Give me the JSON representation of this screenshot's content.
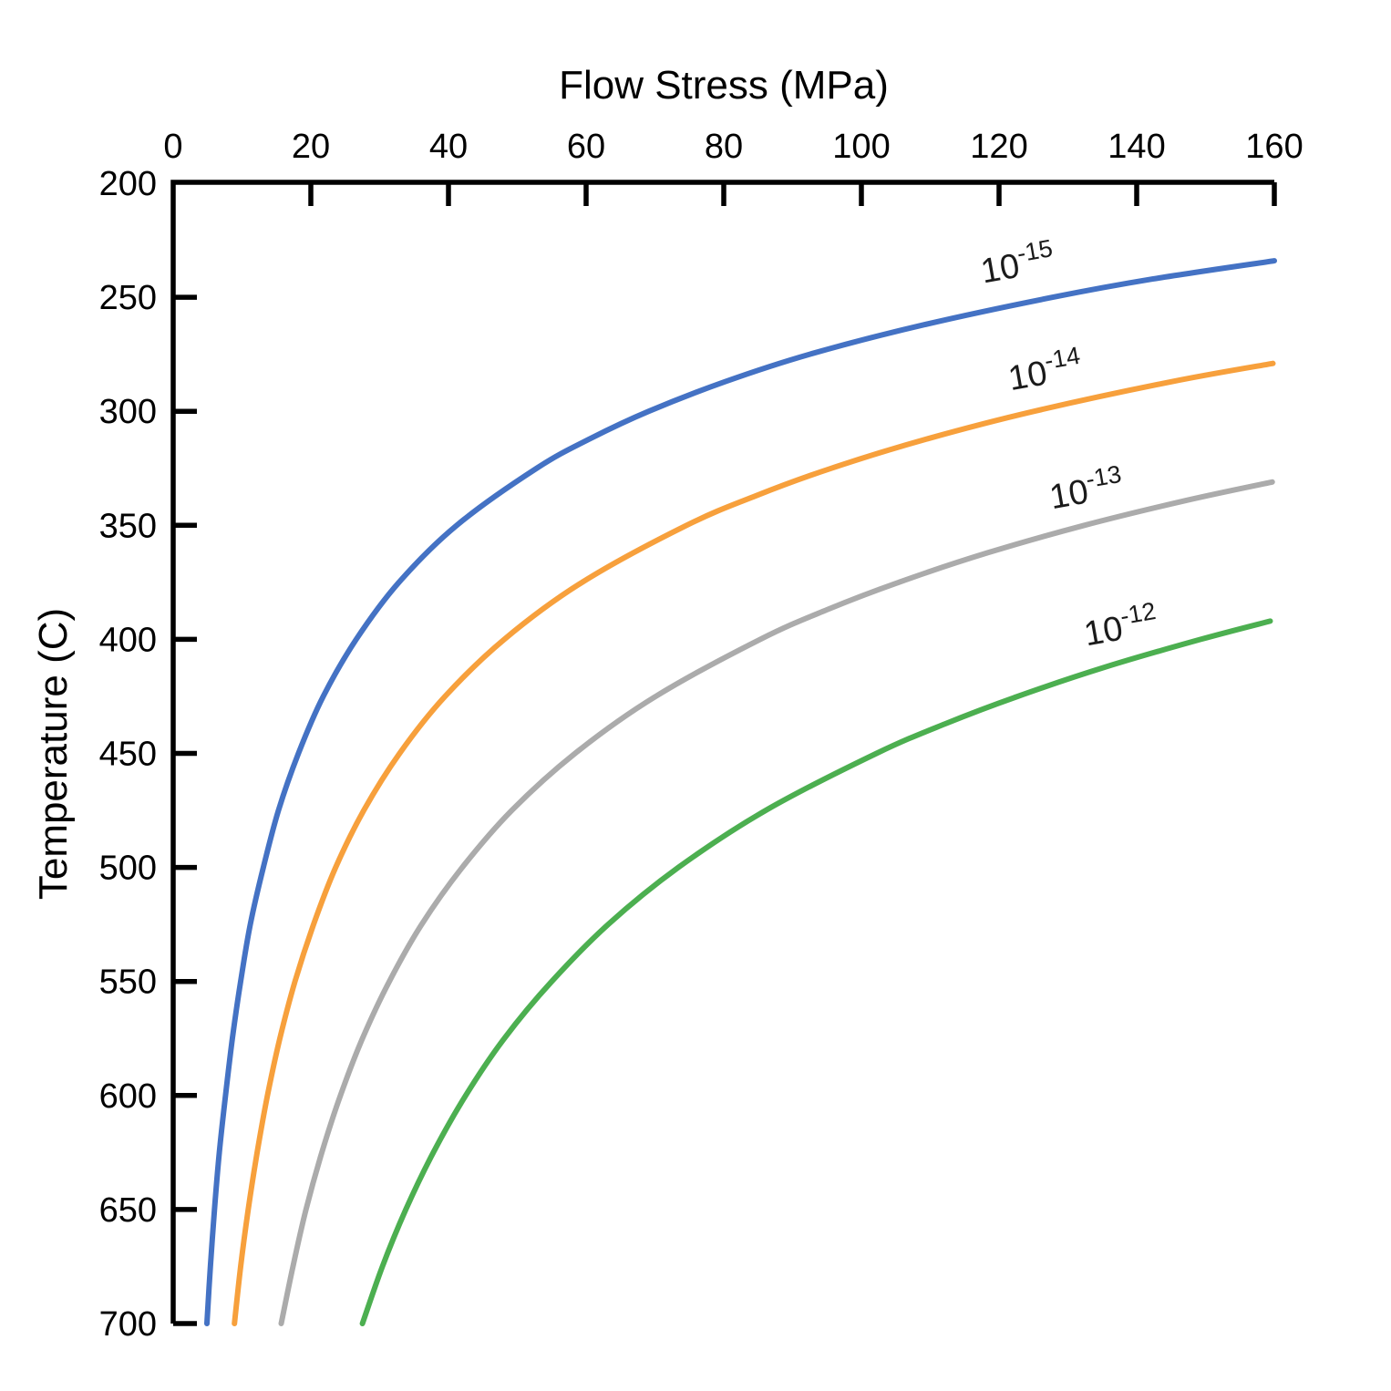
{
  "figure": {
    "background": "#FFFFFF",
    "axis_color": "#000000"
  },
  "chart_data": {
    "type": "line",
    "title": "",
    "xlabel": "Flow Stress (MPa)",
    "ylabel": "Temperature (C)",
    "x_axis_position": "top",
    "y_axis_inverted": true,
    "xlim": [
      0,
      160
    ],
    "ylim": [
      200,
      700
    ],
    "x_ticks": [
      0,
      20,
      40,
      60,
      80,
      100,
      120,
      140,
      160
    ],
    "y_ticks": [
      200,
      250,
      300,
      350,
      400,
      450,
      500,
      550,
      600,
      650,
      700
    ],
    "grid": false,
    "legend": "inline curve labels (strain rate, 1/s)",
    "series": [
      {
        "name": "strain-rate-1e-15",
        "label_base": "10",
        "label_exp": "-15",
        "color": "#4472C4",
        "label_at": {
          "stress": 123,
          "temp": 241,
          "rotation": -10
        },
        "points_stress_temp": [
          [
            160,
            234
          ],
          [
            142.3,
            242
          ],
          [
            127.8,
            250
          ],
          [
            109.2,
            262
          ],
          [
            92.5,
            275
          ],
          [
            80.2,
            287
          ],
          [
            69.1,
            300
          ],
          [
            60.6,
            312
          ],
          [
            52.8,
            325
          ],
          [
            41.2,
            350
          ],
          [
            32.8,
            375
          ],
          [
            26.6,
            400
          ],
          [
            21.8,
            425
          ],
          [
            18.2,
            450
          ],
          [
            15.3,
            475
          ],
          [
            13.1,
            500
          ],
          [
            11.2,
            525
          ],
          [
            9.8,
            550
          ],
          [
            8.6,
            575
          ],
          [
            7.6,
            600
          ],
          [
            6.7,
            625
          ],
          [
            6.0,
            650
          ],
          [
            5.4,
            675
          ],
          [
            4.9,
            700
          ]
        ]
      },
      {
        "name": "strain-rate-1e-14",
        "label_base": "10",
        "label_exp": "-14",
        "color": "#F7A03C",
        "label_at": {
          "stress": 127,
          "temp": 288,
          "rotation": -10
        },
        "points_stress_temp": [
          [
            159.8,
            279
          ],
          [
            145.1,
            287
          ],
          [
            125.1,
            300
          ],
          [
            109.7,
            312
          ],
          [
            95.6,
            325
          ],
          [
            84.7,
            337
          ],
          [
            74.6,
            350
          ],
          [
            59.4,
            375
          ],
          [
            48.1,
            400
          ],
          [
            39.5,
            425
          ],
          [
            32.9,
            450
          ],
          [
            27.7,
            475
          ],
          [
            23.6,
            500
          ],
          [
            20.4,
            525
          ],
          [
            17.7,
            550
          ],
          [
            15.5,
            575
          ],
          [
            13.7,
            600
          ],
          [
            12.2,
            625
          ],
          [
            10.9,
            650
          ],
          [
            9.8,
            675
          ],
          [
            8.9,
            700
          ]
        ]
      },
      {
        "name": "strain-rate-1e-13",
        "label_base": "10",
        "label_exp": "-13",
        "color": "#ABABAB",
        "label_at": {
          "stress": 133,
          "temp": 340,
          "rotation": -10
        },
        "points_stress_temp": [
          [
            159.7,
            331
          ],
          [
            147.3,
            339
          ],
          [
            132.4,
            350
          ],
          [
            118.4,
            362
          ],
          [
            105.4,
            375
          ],
          [
            95.0,
            387
          ],
          [
            85.3,
            400
          ],
          [
            70.1,
            425
          ],
          [
            58.4,
            450
          ],
          [
            49.2,
            475
          ],
          [
            42.0,
            500
          ],
          [
            36.1,
            525
          ],
          [
            31.4,
            550
          ],
          [
            27.5,
            575
          ],
          [
            24.3,
            600
          ],
          [
            21.6,
            625
          ],
          [
            19.3,
            650
          ],
          [
            17.4,
            675
          ],
          [
            15.7,
            700
          ]
        ]
      },
      {
        "name": "strain-rate-1e-12",
        "label_base": "10",
        "label_exp": "-12",
        "color": "#4CAF50",
        "label_at": {
          "stress": 138,
          "temp": 400,
          "rotation": -10
        },
        "points_stress_temp": [
          [
            159.4,
            392
          ],
          [
            149.3,
            400
          ],
          [
            135.6,
            412
          ],
          [
            122.7,
            425
          ],
          [
            112.2,
            437
          ],
          [
            102.2,
            450
          ],
          [
            86.1,
            475
          ],
          [
            73.4,
            500
          ],
          [
            63.2,
            525
          ],
          [
            55.0,
            550
          ],
          [
            48.1,
            575
          ],
          [
            42.5,
            600
          ],
          [
            37.8,
            625
          ],
          [
            33.8,
            650
          ],
          [
            30.4,
            675
          ],
          [
            27.5,
            700
          ]
        ]
      }
    ]
  }
}
